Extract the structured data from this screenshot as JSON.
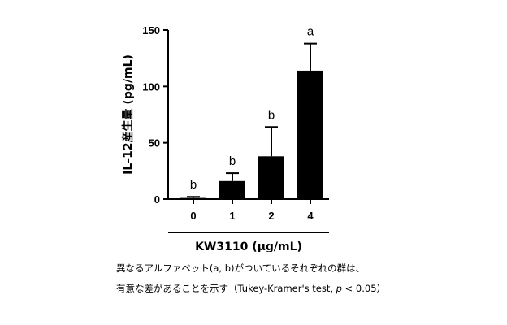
{
  "chart_data": {
    "type": "bar",
    "categories": [
      "0",
      "1",
      "2",
      "4"
    ],
    "values": [
      1,
      16,
      38,
      114
    ],
    "errors": [
      1,
      7,
      26,
      24
    ],
    "significance": [
      "b",
      "b",
      "b",
      "a"
    ],
    "ylabel": "IL-12産生量 (pg/mL)",
    "xlabel": "KW3110 (μg/mL)",
    "ylim": [
      0,
      150
    ],
    "yticks": [
      0,
      50,
      100,
      150
    ],
    "bar_color": "#000000",
    "grid": false
  },
  "footnote": {
    "line1": "異なるアルファベット(a, b)がついているそれぞれの群は、",
    "line2_prefix": "有意な差があることを示す（Tukey-Kramer's test, ",
    "line2_p": "p",
    "line2_suffix": " < 0.05）"
  }
}
